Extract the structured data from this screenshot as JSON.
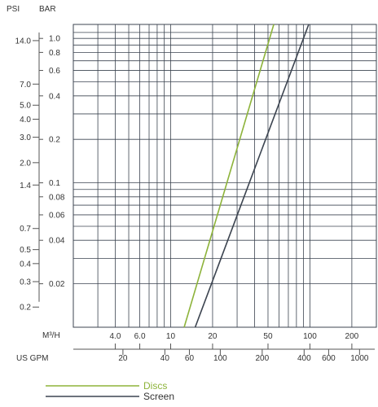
{
  "chart_data": {
    "type": "line",
    "title": "",
    "x_scale": "log",
    "y_scale": "log",
    "grid": true,
    "legend_position": "bottom",
    "xlim_m3h": [
      2.0,
      300.0
    ],
    "ylim_bar": [
      0.01,
      1.25
    ],
    "axes": {
      "psi_label": "PSI",
      "bar_label": "BAR",
      "m3h_label": "M³/H",
      "gpm_label": "US GPM"
    },
    "psi_ticks": [
      {
        "label": "14.0",
        "value": 14.0
      },
      {
        "label": "7.0",
        "value": 7.0
      },
      {
        "label": "5.0",
        "value": 5.0
      },
      {
        "label": "4.0",
        "value": 4.0
      },
      {
        "label": "3.0",
        "value": 3.0
      },
      {
        "label": "2.0",
        "value": 2.0
      },
      {
        "label": "1.4",
        "value": 1.4
      },
      {
        "label": "0.7",
        "value": 0.7
      },
      {
        "label": "0.5",
        "value": 0.5
      },
      {
        "label": "0.4",
        "value": 0.4
      },
      {
        "label": "0.3",
        "value": 0.3
      },
      {
        "label": "0.2",
        "value": 0.2
      }
    ],
    "bar_ticks": [
      {
        "label": "1.0",
        "value": 1.0
      },
      {
        "label": "0.8",
        "value": 0.8
      },
      {
        "label": "0.6",
        "value": 0.6
      },
      {
        "label": "0.4",
        "value": 0.4
      },
      {
        "label": "0.2",
        "value": 0.2
      },
      {
        "label": "0.1",
        "value": 0.1
      },
      {
        "label": "0.08",
        "value": 0.08
      },
      {
        "label": "0.06",
        "value": 0.06
      },
      {
        "label": "0.04",
        "value": 0.04
      },
      {
        "label": "0.02",
        "value": 0.02
      }
    ],
    "m3h_ticks": [
      {
        "label": "4.0",
        "value": 4.0
      },
      {
        "label": "6.0",
        "value": 6.0
      },
      {
        "label": "10",
        "value": 10
      },
      {
        "label": "20",
        "value": 20
      },
      {
        "label": "50",
        "value": 50
      },
      {
        "label": "100",
        "value": 100
      },
      {
        "label": "200",
        "value": 200
      }
    ],
    "gpm_ticks": [
      {
        "label": "20",
        "value": 20
      },
      {
        "label": "40",
        "value": 40
      },
      {
        "label": "60",
        "value": 60
      },
      {
        "label": "100",
        "value": 100
      },
      {
        "label": "200",
        "value": 200
      },
      {
        "label": "400",
        "value": 400
      },
      {
        "label": "600",
        "value": 600
      },
      {
        "label": "1000",
        "value": 1000
      }
    ],
    "grid_bar_values": [
      1.1,
      1.0,
      0.9,
      0.8,
      0.7,
      0.6,
      0.5,
      0.4,
      0.3,
      0.2,
      0.1,
      0.09,
      0.08,
      0.07,
      0.06,
      0.05,
      0.04,
      0.03,
      0.02
    ],
    "grid_m3h_values": [
      3,
      4,
      5,
      6,
      7,
      8,
      9,
      10,
      20,
      30,
      40,
      50,
      60,
      70,
      80,
      90,
      100,
      200
    ],
    "series": [
      {
        "name": "Discs",
        "color": "#8db33a",
        "points": [
          {
            "x": 12.5,
            "y": 0.01
          },
          {
            "x": 55,
            "y": 1.25
          }
        ]
      },
      {
        "name": "Screen",
        "color": "#3c4450",
        "points": [
          {
            "x": 15,
            "y": 0.01
          },
          {
            "x": 98,
            "y": 1.25
          }
        ]
      }
    ]
  }
}
